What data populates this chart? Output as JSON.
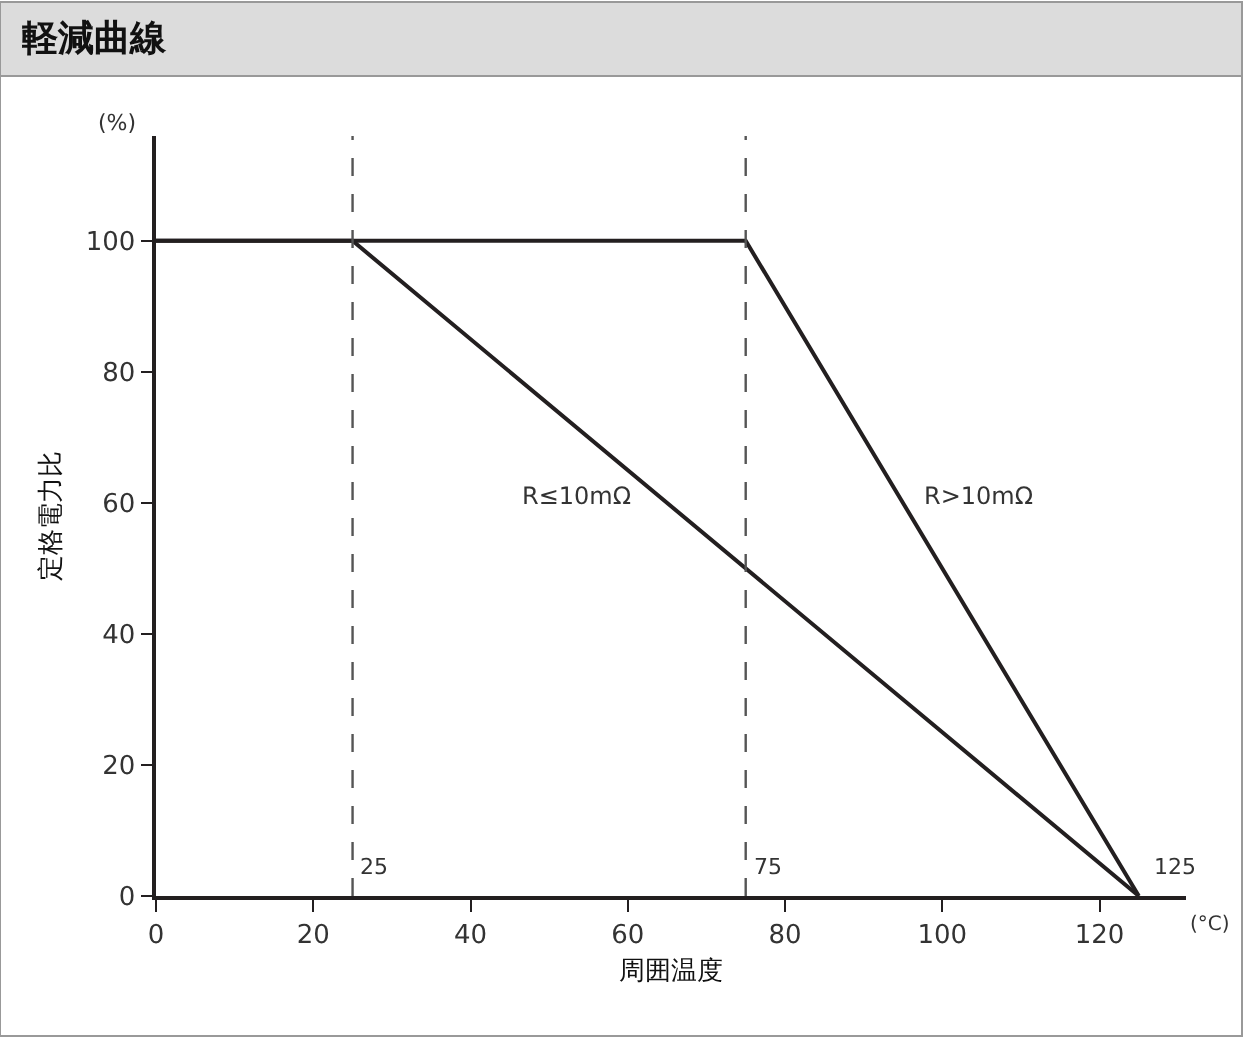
{
  "chart_data": {
    "type": "line",
    "title": "軽減曲線",
    "xlabel": "周囲温度",
    "ylabel": "定格電力比",
    "series": [
      {
        "name": "R≤10mΩ",
        "color": "#231f20",
        "x": [
          0,
          25,
          125
        ],
        "values": [
          100,
          100,
          0
        ]
      },
      {
        "name": "R>10mΩ",
        "color": "#231f20",
        "x": [
          0,
          75,
          125
        ],
        "values": [
          100,
          100,
          0
        ]
      }
    ],
    "xlim": [
      0,
      131
    ],
    "xticks": [
      0,
      20,
      40,
      60,
      80,
      100,
      120
    ],
    "ylim": [
      0,
      116
    ],
    "yticks": [
      0,
      20,
      40,
      60,
      80,
      100
    ],
    "ref_lines": [
      {
        "axis": "x",
        "value": 25,
        "label": "25",
        "color": "#555555",
        "line_style": "dashed"
      },
      {
        "axis": "x",
        "value": 75,
        "label": "75",
        "color": "#555555",
        "line_style": "dashed"
      }
    ],
    "annotations": [
      "(%)",
      "(°C)",
      {
        "text": "125",
        "x": 125,
        "y": 0
      }
    ],
    "grid": false,
    "legend": false,
    "marker": "none",
    "line_style": "solid"
  }
}
